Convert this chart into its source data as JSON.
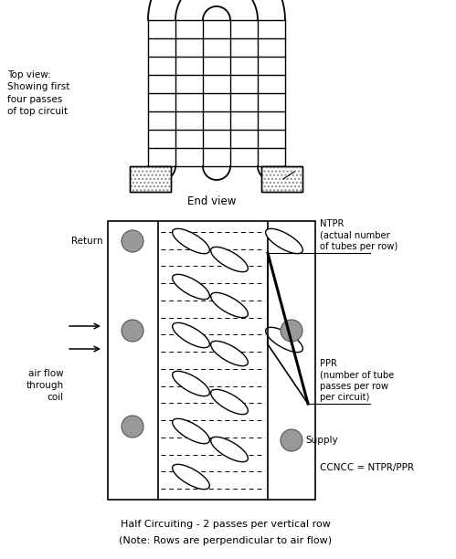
{
  "bg_color": "#ffffff",
  "line_color": "#000000",
  "gray_color": "#aaaaaa",
  "top_view_label": "Top view:\nShowing first\nfour passes\nof top circuit",
  "end_view_label": "End view",
  "return_label": "Return",
  "supply_label": "Supply",
  "airflow_label": "air flow\nthrough\ncoil",
  "ntpr_label": "NTPR\n(actual number\nof tubes per row)",
  "ppr_label": "PPR\n(number of tube\npasses per row\nper circuit)",
  "ccncc_label": "CCNCC = NTPR/PPR",
  "bottom_text1": "Half Circuiting - 2 passes per vertical row",
  "bottom_text2": "(Note: Rows are perpendicular to air flow)"
}
